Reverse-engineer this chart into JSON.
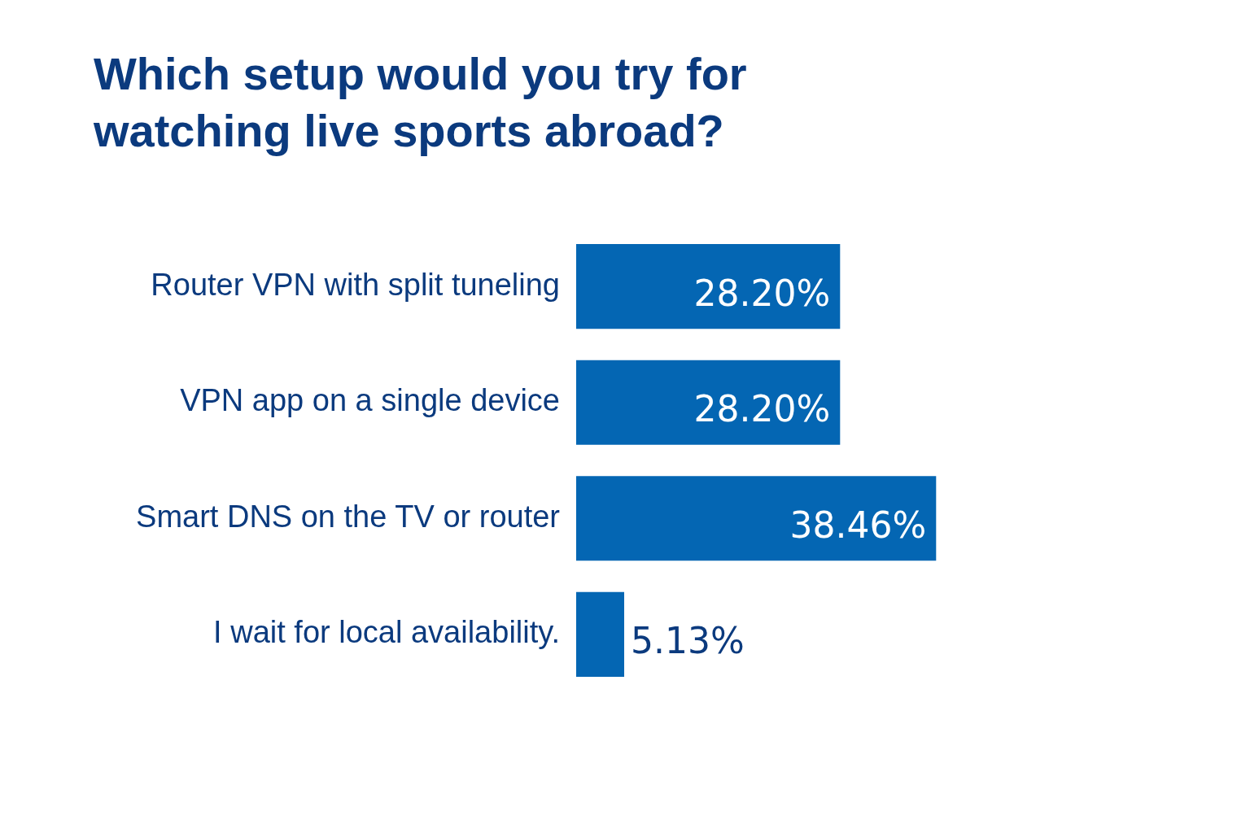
{
  "chart_data": {
    "type": "bar",
    "orientation": "horizontal",
    "title": "Which setup would you try for watching live sports abroad?",
    "categories": [
      "Router VPN with split tuneling",
      "VPN app on a single device",
      "Smart DNS on the TV or router",
      "I wait for local availability."
    ],
    "values": [
      28.2,
      28.2,
      38.46,
      5.13
    ],
    "value_labels": [
      "28.20%",
      "28.20%",
      "38.46%",
      "5.13%"
    ],
    "color": "#0466b3",
    "grid": false,
    "legend": false,
    "tick_labels": "y"
  }
}
